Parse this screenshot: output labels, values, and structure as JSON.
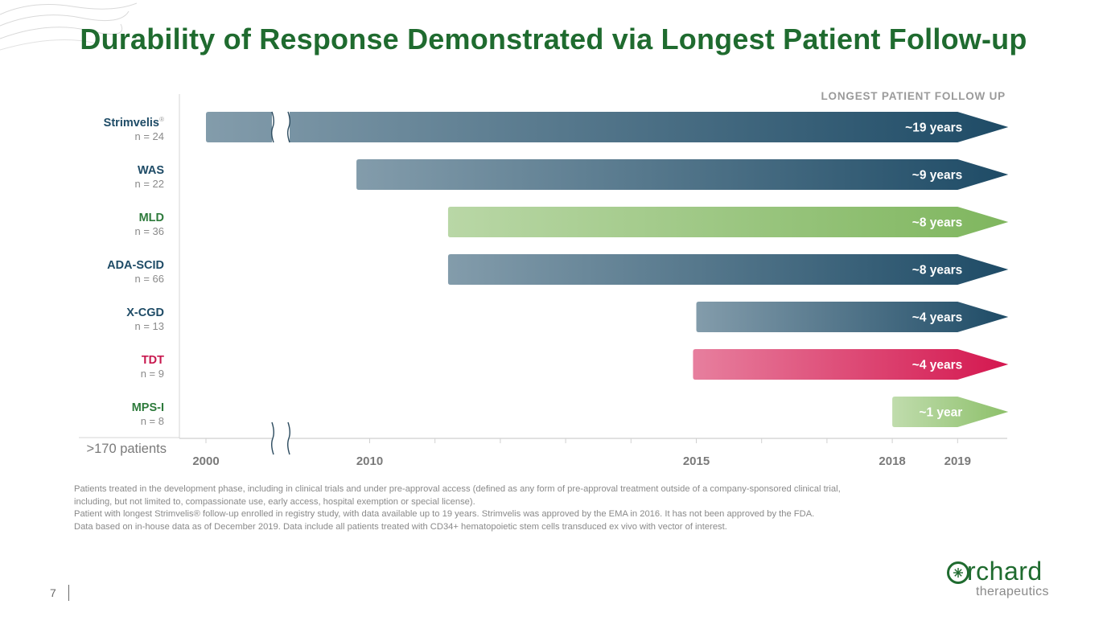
{
  "title": "Durability of Response Demonstrated via Longest Patient Follow-up",
  "chart_data": {
    "type": "bar",
    "orientation": "horizontal-timeline",
    "legend_header": "LONGEST PATIENT FOLLOW UP",
    "x_ticks": [
      "2000",
      "2010",
      "2015",
      "2018",
      "2019"
    ],
    "xlim": [
      2000,
      2019.8
    ],
    "axis_break": "between 2000 and 2010",
    "total_label": ">170 patients",
    "series": [
      {
        "name": "Strimvelis",
        "superscript": "®",
        "n_label": "n = 24",
        "start": 2000,
        "end": 2019,
        "duration_label": "~19 years",
        "color": "#1e4b66",
        "name_color": "#1e4b66"
      },
      {
        "name": "WAS",
        "n_label": "n = 22",
        "start": 2009.1,
        "end": 2019,
        "duration_label": "~9 years",
        "color": "#1e4b66",
        "name_color": "#1e4b66"
      },
      {
        "name": "MLD",
        "n_label": "n = 36",
        "start": 2011.2,
        "end": 2019,
        "duration_label": "~8 years",
        "color": "#7fb65e",
        "name_color": "#2d7a3b"
      },
      {
        "name": "ADA-SCID",
        "n_label": "n = 66",
        "start": 2011.2,
        "end": 2019,
        "duration_label": "~8 years",
        "color": "#1e4b66",
        "name_color": "#1e4b66"
      },
      {
        "name": "X-CGD",
        "n_label": "n = 13",
        "start": 2015,
        "end": 2019,
        "duration_label": "~4 years",
        "color": "#1e4b66",
        "name_color": "#1e4b66"
      },
      {
        "name": "TDT",
        "n_label": "n = 9",
        "start": 2014.95,
        "end": 2019,
        "duration_label": "~4 years",
        "color": "#d4174f",
        "name_color": "#c8184e"
      },
      {
        "name": "MPS-I",
        "n_label": "n = 8",
        "start": 2018,
        "end": 2019,
        "duration_label": "~1 year",
        "color": "#8dc06a",
        "name_color": "#2d7a3b"
      }
    ]
  },
  "footnotes": [
    "Patients treated in the development phase, including in clinical trials and under pre-approval access (defined as any form of pre-approval treatment outside of a company-sponsored clinical trial,",
    "including, but not limited to, compassionate use, early access, hospital exemption or special license).",
    "Patient with longest Strimvelis® follow-up enrolled in registry study, with data available up to 19 years. Strimvelis was approved by the EMA in 2016. It has not been approved by the FDA.",
    "Data based on in-house data as of December 2019. Data include all patients treated with CD34+ hematopoietic stem cells transduced ex vivo with vector of interest."
  ],
  "page_number": "7",
  "logo": {
    "word": "rchard",
    "subtitle": "therapeutics"
  }
}
